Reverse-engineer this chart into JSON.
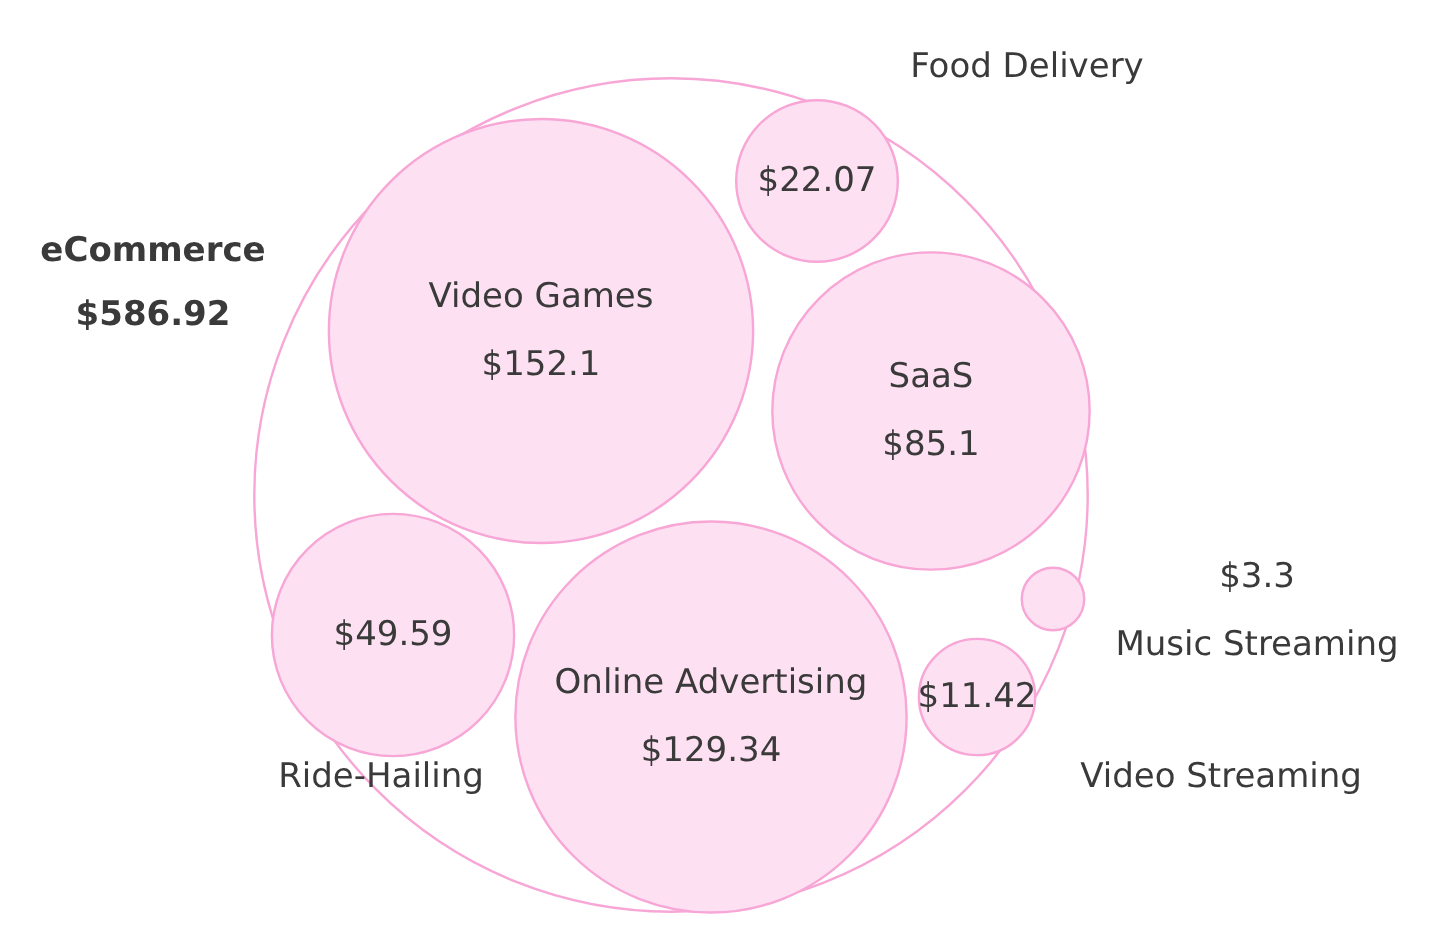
{
  "chart_data": {
    "type": "other",
    "categories": [
      "eCommerce",
      "Food Delivery",
      "Video Games",
      "SaaS",
      "Music Streaming",
      "Ride-Hailing",
      "Online Advertising",
      "Video Streaming"
    ],
    "values": [
      586.92,
      22.07,
      152.1,
      85.1,
      3.3,
      49.59,
      129.34,
      11.42
    ],
    "value_labels": [
      "$586.92",
      "$22.07",
      "$152.1",
      "$85.1",
      "$3.3",
      "$49.59",
      "$129.34",
      "$11.42"
    ],
    "colors": [
      "#ffffff",
      "#fde0f2",
      "#fde0f2",
      "#fde0f2",
      "#fde0f2",
      "#fde0f2",
      "#fde0f2",
      "#fde0f2"
    ]
  }
}
